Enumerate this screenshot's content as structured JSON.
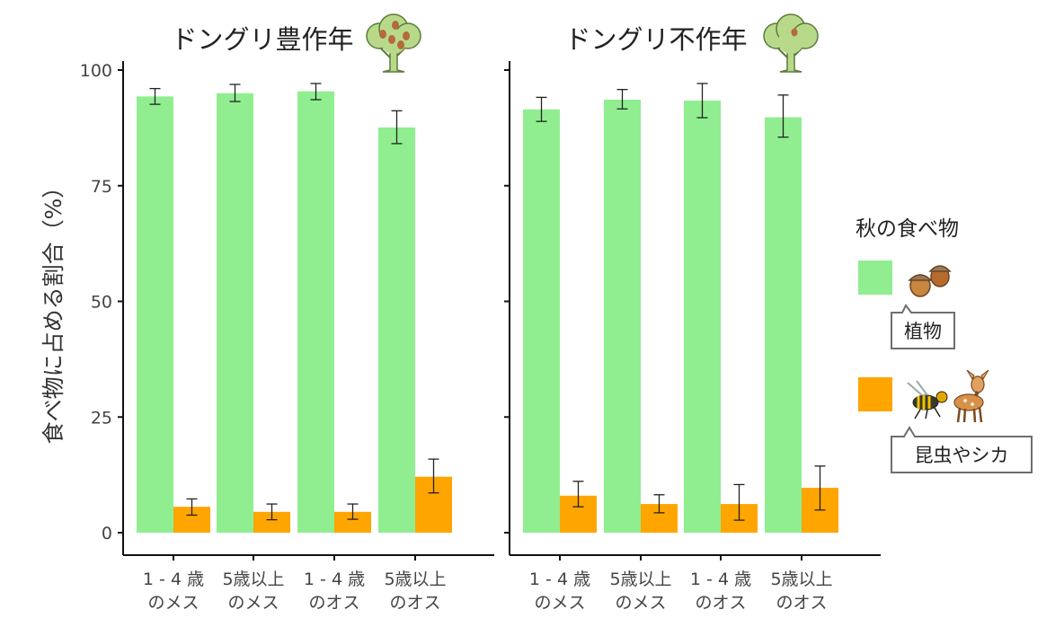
{
  "chart_data": {
    "type": "bar",
    "ylabel": "食べ物に占める割合（%）",
    "ylim": [
      0,
      100
    ],
    "yticks": [
      0,
      25,
      50,
      75,
      100
    ],
    "categories": [
      "1 - 4 歳\nのメス",
      "5歳以上\nのメス",
      "1 - 4 歳\nのオス",
      "5歳以上\nのオス"
    ],
    "panels": [
      {
        "title": "ドングリ豊作年",
        "series": [
          {
            "name": "植物",
            "color": "#90EE90",
            "values": [
              94.3,
              95.0,
              95.4,
              87.6
            ],
            "err_low": [
              92.6,
              93.2,
              93.6,
              84.1
            ],
            "err_high": [
              96.0,
              96.9,
              97.1,
              91.2
            ]
          },
          {
            "name": "昆虫やシカ",
            "color": "#FFA500",
            "values": [
              5.6,
              4.5,
              4.5,
              12.1
            ],
            "err_low": [
              3.8,
              2.8,
              2.9,
              8.6
            ],
            "err_high": [
              7.3,
              6.2,
              6.2,
              15.9
            ]
          }
        ]
      },
      {
        "title": "ドングリ不作年",
        "series": [
          {
            "name": "植物",
            "color": "#90EE90",
            "values": [
              91.5,
              93.6,
              93.4,
              89.8
            ],
            "err_low": [
              88.9,
              91.6,
              89.7,
              85.5
            ],
            "err_high": [
              94.1,
              95.8,
              97.1,
              94.6
            ]
          },
          {
            "name": "昆虫やシカ",
            "color": "#FFA500",
            "values": [
              8.0,
              6.2,
              6.2,
              9.7
            ],
            "err_low": [
              5.6,
              4.3,
              2.7,
              4.9
            ],
            "err_high": [
              11.1,
              8.2,
              10.4,
              14.4
            ]
          }
        ]
      }
    ],
    "legend": {
      "title": "秋の食べ物",
      "placement": "right",
      "items": [
        {
          "label": "植物",
          "color": "#90EE90",
          "icon": "acorn-icon"
        },
        {
          "label": "昆虫やシカ",
          "color": "#FFA500",
          "icon": "hornet-deer-icon"
        }
      ]
    },
    "panel_icons": [
      "acorn-tree-icon",
      "tree-icon"
    ]
  }
}
